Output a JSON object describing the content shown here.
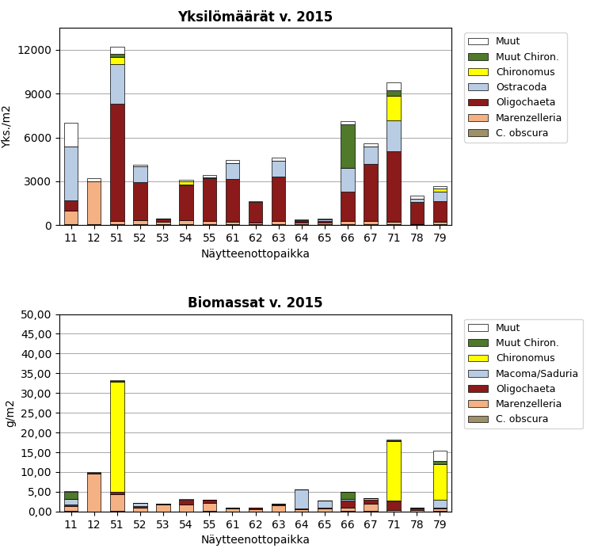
{
  "chart_data": [
    {
      "type": "bar",
      "stacked": true,
      "grid": true,
      "legend": "upper left",
      "title": "Yksilömäärät v. 2015",
      "x_label": "Näytteenottopaikka",
      "y_label": "Yks./m2",
      "categories": [
        "11",
        "12",
        "51",
        "52",
        "53",
        "54",
        "55",
        "61",
        "62",
        "63",
        "64",
        "65",
        "66",
        "67",
        "71",
        "78",
        "79"
      ],
      "ylim": [
        0,
        13500
      ],
      "yticks": [
        0,
        3000,
        6000,
        9000,
        12000
      ],
      "series": [
        {
          "name": "C. obscura",
          "color": "#9E9068",
          "values": [
            100,
            50,
            100,
            50,
            50,
            50,
            100,
            50,
            50,
            100,
            50,
            50,
            100,
            100,
            100,
            50,
            50
          ]
        },
        {
          "name": "Marenzelleria",
          "color": "#F4B183",
          "values": [
            900,
            2950,
            200,
            300,
            200,
            300,
            200,
            200,
            150,
            200,
            150,
            150,
            200,
            200,
            150,
            50,
            200
          ]
        },
        {
          "name": "Oligochaeta",
          "color": "#8B1A1A",
          "values": [
            700,
            0,
            8000,
            2600,
            200,
            2400,
            2900,
            2900,
            1400,
            3000,
            100,
            100,
            2000,
            3900,
            4800,
            1500,
            1400
          ]
        },
        {
          "name": "Ostracoda",
          "color": "#B8CCE4",
          "values": [
            3700,
            0,
            2700,
            1100,
            0,
            50,
            50,
            1100,
            0,
            1100,
            50,
            100,
            1600,
            1200,
            2100,
            200,
            650
          ]
        },
        {
          "name": "Chironomus",
          "color": "#FFFF00",
          "values": [
            0,
            0,
            500,
            0,
            0,
            200,
            0,
            0,
            0,
            0,
            0,
            0,
            0,
            0,
            1700,
            0,
            200
          ]
        },
        {
          "name": "Muut Chiron.",
          "color": "#4E7A2A",
          "values": [
            0,
            0,
            200,
            0,
            0,
            0,
            0,
            0,
            0,
            0,
            0,
            0,
            3000,
            0,
            400,
            0,
            0
          ]
        },
        {
          "name": "Muut",
          "color": "#FFFFFF",
          "values": [
            1600,
            200,
            500,
            100,
            0,
            100,
            200,
            200,
            50,
            200,
            50,
            50,
            200,
            200,
            500,
            200,
            200
          ]
        }
      ]
    },
    {
      "type": "bar",
      "stacked": true,
      "grid": true,
      "legend": "upper left",
      "title": "Biomassat v. 2015",
      "x_label": "Näytteenottopaikka",
      "y_label": "g/m2",
      "categories": [
        "11",
        "12",
        "51",
        "52",
        "53",
        "54",
        "55",
        "61",
        "62",
        "63",
        "64",
        "65",
        "66",
        "67",
        "71",
        "78",
        "79"
      ],
      "ylim": [
        0,
        50
      ],
      "yticks": [
        {
          "value": 0,
          "label": "0,00"
        },
        {
          "value": 5,
          "label": "5,00"
        },
        {
          "value": 10,
          "label": "10,00"
        },
        {
          "value": 15,
          "label": "15,00"
        },
        {
          "value": 20,
          "label": "20,00"
        },
        {
          "value": 25,
          "label": "25,00"
        },
        {
          "value": 30,
          "label": "30,00"
        },
        {
          "value": 35,
          "label": "35,00"
        },
        {
          "value": 40,
          "label": "40,00"
        },
        {
          "value": 45,
          "label": "45,00"
        },
        {
          "value": 50,
          "label": "50,00"
        }
      ],
      "series": [
        {
          "name": "C. obscura",
          "color": "#9E9068",
          "values": [
            0.1,
            0.05,
            0.1,
            0.05,
            0.05,
            0.05,
            0.1,
            0.05,
            0.05,
            0.05,
            0.05,
            0.05,
            0.1,
            0.1,
            0.05,
            0.05,
            0.1
          ]
        },
        {
          "name": "Marenzelleria",
          "color": "#F4B183",
          "values": [
            1.2,
            9.6,
            4.3,
            1.0,
            1.8,
            1.8,
            2.1,
            0.8,
            0.6,
            1.5,
            0.6,
            0.7,
            0.8,
            1.8,
            0.3,
            0.3,
            0.6
          ]
        },
        {
          "name": "Oligochaeta",
          "color": "#8B1A1A",
          "values": [
            0.4,
            0.2,
            0.5,
            0.4,
            0.05,
            1.2,
            0.7,
            0.15,
            0.25,
            0.3,
            0.15,
            0.2,
            1.8,
            1.1,
            2.3,
            0.5,
            0.35
          ]
        },
        {
          "name": "Macoma/Saduria",
          "color": "#B8CCE4",
          "values": [
            1.5,
            0.0,
            0.0,
            0.7,
            0.0,
            0.0,
            0.0,
            0.0,
            0.0,
            0.2,
            4.8,
            1.8,
            0.5,
            0.3,
            0.1,
            0.2,
            2.0
          ]
        },
        {
          "name": "Chironomus",
          "color": "#FFFF00",
          "values": [
            0.0,
            0.0,
            28.0,
            0.0,
            0.0,
            0.0,
            0.0,
            0.0,
            0.0,
            0.0,
            0.0,
            0.0,
            0.0,
            0.0,
            15.0,
            0.0,
            9.0
          ]
        },
        {
          "name": "Muut Chiron.",
          "color": "#4E7A2A",
          "values": [
            1.8,
            0.0,
            0.1,
            0.0,
            0.0,
            0.0,
            0.0,
            0.0,
            0.0,
            0.0,
            0.0,
            0.0,
            1.7,
            0.0,
            0.2,
            0.0,
            0.7
          ]
        },
        {
          "name": "Muut",
          "color": "#FFFFFF",
          "values": [
            0.1,
            0.1,
            0.2,
            0.1,
            0.0,
            0.1,
            0.0,
            0.0,
            0.0,
            0.0,
            0.0,
            0.0,
            0.1,
            0.0,
            0.3,
            0.0,
            2.6
          ]
        }
      ]
    }
  ]
}
